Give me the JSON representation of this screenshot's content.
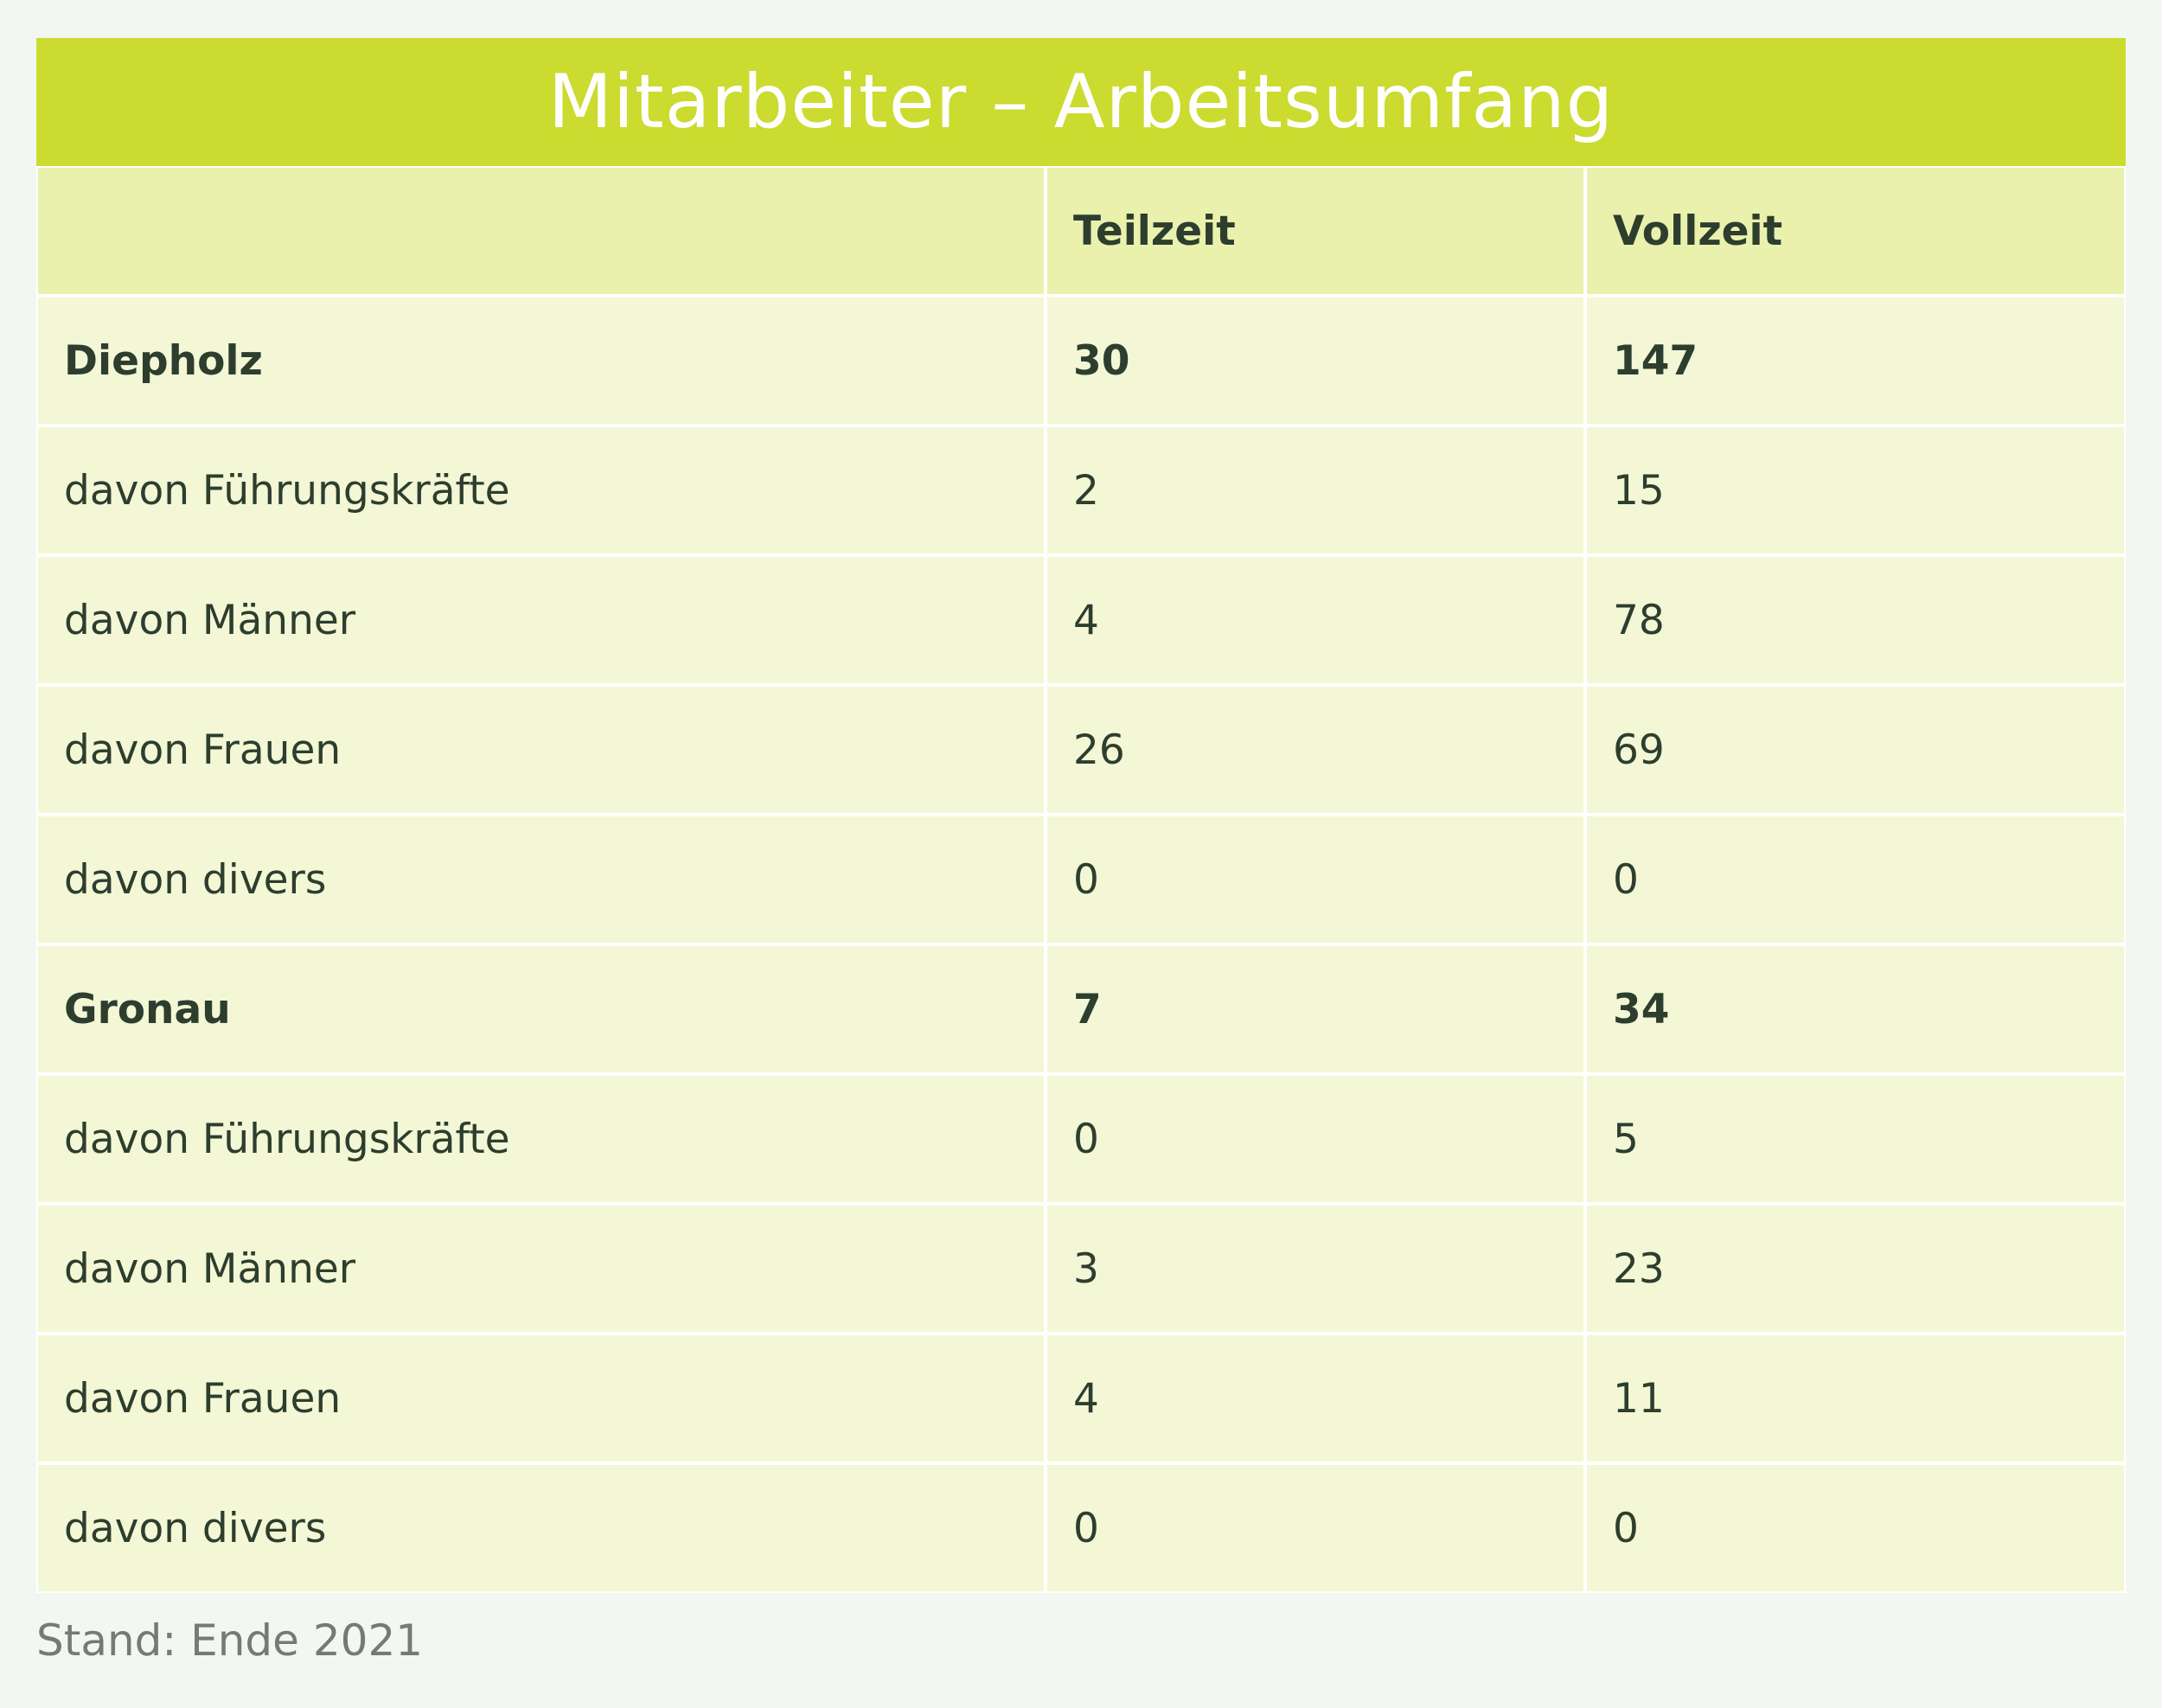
{
  "chart_data": {
    "type": "table",
    "title": "Mitarbeiter – Arbeitsumfang",
    "columns": [
      "",
      "Teilzeit",
      "Vollzeit"
    ],
    "rows": [
      {
        "label": "Diepholz",
        "teilzeit": "30",
        "vollzeit": "147",
        "bold": true
      },
      {
        "label": "davon Führungskräfte",
        "teilzeit": "2",
        "vollzeit": "15",
        "bold": false
      },
      {
        "label": "davon Männer",
        "teilzeit": "4",
        "vollzeit": "78",
        "bold": false
      },
      {
        "label": "davon Frauen",
        "teilzeit": "26",
        "vollzeit": "69",
        "bold": false
      },
      {
        "label": "davon divers",
        "teilzeit": "0",
        "vollzeit": "0",
        "bold": false
      },
      {
        "label": "Gronau",
        "teilzeit": "7",
        "vollzeit": "34",
        "bold": true
      },
      {
        "label": "davon Führungskräfte",
        "teilzeit": "0",
        "vollzeit": "5",
        "bold": false
      },
      {
        "label": "davon Männer",
        "teilzeit": "3",
        "vollzeit": "23",
        "bold": false
      },
      {
        "label": "davon Frauen",
        "teilzeit": "4",
        "vollzeit": "11",
        "bold": false
      },
      {
        "label": "davon divers",
        "teilzeit": "0",
        "vollzeit": "0",
        "bold": false
      }
    ],
    "footnote": "Stand: Ende 2021"
  },
  "colors": {
    "title_bar": "#cbdb2f",
    "header_row": "#e9f1ad",
    "body_row": "#f3f7d5",
    "text": "#2d3e2e",
    "footnote": "#747b76"
  }
}
